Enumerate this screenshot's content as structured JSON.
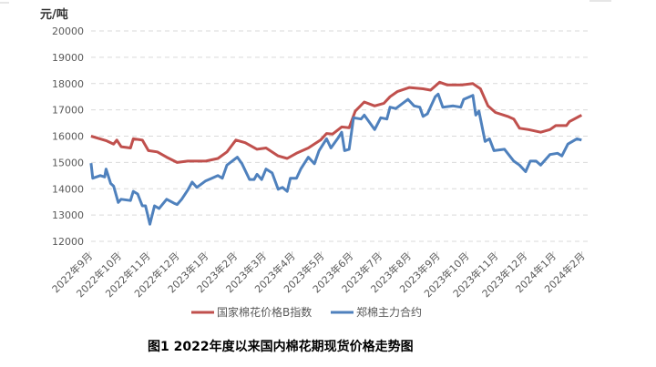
{
  "chart_data": {
    "type": "line",
    "title": "图1  2022年度以来国内棉花期现货价格走势图",
    "ylabel": "元/吨",
    "xlabel": "",
    "ylim": [
      12000,
      20000
    ],
    "yticks": [
      20000,
      19000,
      18000,
      17000,
      16000,
      15000,
      14000,
      13000,
      12000
    ],
    "grid": true,
    "legend_position": "bottom",
    "x_unit": "months since 2022年9月",
    "categories": [
      "2022年9月",
      "2022年10月",
      "2022年11月",
      "2022年12月",
      "2023年1月",
      "2023年2月",
      "2023年3月",
      "2023年4月",
      "2023年5月",
      "2023年6月",
      "2023年7月",
      "2023年8月",
      "2023年9月",
      "2023年10月",
      "2023年11月",
      "2023年12月",
      "2024年1月",
      "2024年2月"
    ],
    "series": [
      {
        "name": "国家棉花价格B指数",
        "color": "#C0504D",
        "x": [
          0.06,
          0.58,
          0.84,
          0.95,
          1.1,
          1.42,
          1.52,
          1.83,
          2.04,
          2.35,
          2.67,
          3.03,
          3.4,
          4.02,
          4.44,
          4.75,
          5.06,
          5.38,
          5.79,
          6.1,
          6.52,
          6.83,
          7.15,
          7.56,
          7.98,
          8.19,
          8.4,
          8.71,
          8.97,
          9.18,
          9.49,
          9.85,
          10.17,
          10.38,
          10.64,
          11.05,
          11.52,
          11.78,
          12.09,
          12.35,
          12.88,
          13.24,
          13.5,
          13.76,
          14.02,
          14.44,
          14.65,
          14.85,
          15.16,
          15.58,
          15.9,
          16.1,
          16.47,
          16.57,
          16.99
        ],
        "values": [
          16000,
          15830,
          15700,
          15850,
          15600,
          15550,
          15900,
          15850,
          15450,
          15400,
          15200,
          15000,
          15050,
          15050,
          15150,
          15400,
          15850,
          15750,
          15500,
          15550,
          15250,
          15150,
          15350,
          15550,
          15850,
          16100,
          16080,
          16350,
          16320,
          16950,
          17300,
          17150,
          17250,
          17500,
          17700,
          17850,
          17800,
          17750,
          18050,
          17950,
          17950,
          18000,
          17800,
          17150,
          16900,
          16750,
          16650,
          16300,
          16250,
          16150,
          16250,
          16400,
          16400,
          16550,
          16800
        ]
      },
      {
        "name": "郑棉主力合约",
        "color": "#4F81BD",
        "x": [
          0.06,
          0.12,
          0.38,
          0.53,
          0.58,
          0.74,
          0.84,
          1.0,
          1.1,
          1.42,
          1.52,
          1.67,
          1.83,
          1.94,
          2.09,
          2.25,
          2.41,
          2.67,
          2.92,
          3.03,
          3.19,
          3.4,
          3.55,
          3.71,
          4.02,
          4.23,
          4.44,
          4.59,
          4.75,
          5.11,
          5.27,
          5.53,
          5.69,
          5.79,
          5.95,
          6.1,
          6.31,
          6.52,
          6.67,
          6.83,
          6.94,
          7.15,
          7.3,
          7.56,
          7.77,
          7.93,
          8.19,
          8.34,
          8.6,
          8.71,
          8.81,
          8.97,
          9.12,
          9.38,
          9.49,
          9.85,
          10.06,
          10.27,
          10.38,
          10.58,
          11.0,
          11.21,
          11.41,
          11.52,
          11.67,
          11.94,
          12.04,
          12.2,
          12.56,
          12.82,
          12.92,
          13.24,
          13.34,
          13.45,
          13.66,
          13.81,
          13.97,
          14.33,
          14.65,
          14.85,
          15.06,
          15.22,
          15.42,
          15.58,
          15.9,
          16.16,
          16.31,
          16.52,
          16.83,
          16.99
        ],
        "values": [
          14970,
          14400,
          14500,
          14450,
          14750,
          14200,
          14100,
          13480,
          13600,
          13550,
          13900,
          13800,
          13350,
          13350,
          12650,
          13350,
          13250,
          13600,
          13450,
          13400,
          13600,
          13950,
          14250,
          14050,
          14300,
          14400,
          14500,
          14400,
          14900,
          15200,
          14950,
          14350,
          14350,
          14550,
          14350,
          14750,
          14600,
          13980,
          14050,
          13900,
          14400,
          14400,
          14750,
          15200,
          14950,
          15450,
          15900,
          15550,
          15950,
          16150,
          15450,
          15500,
          16700,
          16650,
          16800,
          16250,
          16700,
          16650,
          17100,
          17050,
          17400,
          17150,
          17100,
          16750,
          16850,
          17500,
          17600,
          17100,
          17150,
          17100,
          17400,
          17550,
          16800,
          16950,
          15800,
          15900,
          15450,
          15500,
          15050,
          14900,
          14650,
          15050,
          15050,
          14900,
          15300,
          15350,
          15250,
          15700,
          15900,
          15850
        ]
      }
    ]
  }
}
